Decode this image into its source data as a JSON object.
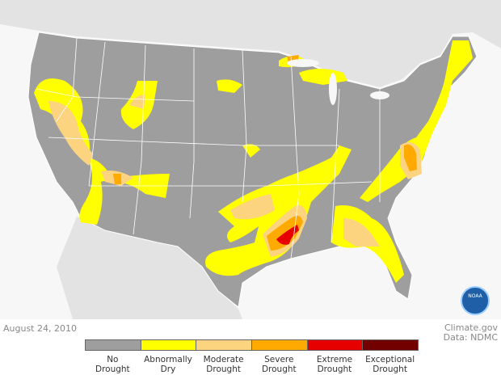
{
  "map": {
    "date": "August 24, 2010",
    "source": "Climate.gov",
    "data_credit": "Data: NDMC",
    "logo": "NOAA",
    "legend": [
      {
        "label": "No Drought",
        "color": "#9e9e9e"
      },
      {
        "label": "Abnormally Dry",
        "color": "#ffff00"
      },
      {
        "label": "Moderate Drought",
        "color": "#fcd37f"
      },
      {
        "label": "Severe Drought",
        "color": "#ffaa00"
      },
      {
        "label": "Extreme Drought",
        "color": "#e60000"
      },
      {
        "label": "Exceptional Drought",
        "color": "#730000"
      }
    ]
  }
}
